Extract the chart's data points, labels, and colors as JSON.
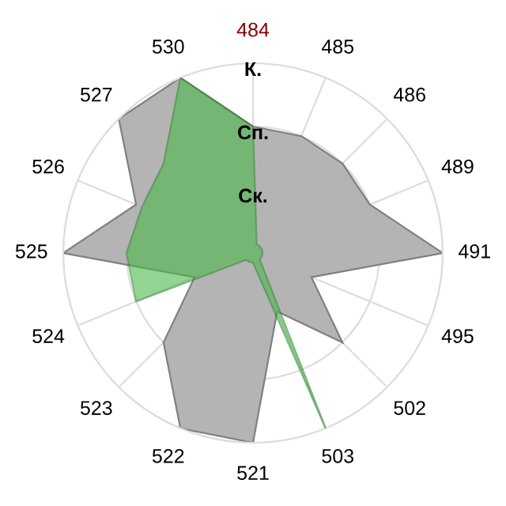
{
  "chart_data": {
    "type": "radar",
    "categories": [
      "484",
      "485",
      "486",
      "489",
      "491",
      "495",
      "502",
      "503",
      "521",
      "522",
      "523",
      "524",
      "525",
      "526",
      "527",
      "530"
    ],
    "colors": [
      "#8b0000",
      "#000000",
      "#000000",
      "#000000",
      "#000000",
      "#000000",
      "#000000",
      "#000000",
      "#000000",
      "#000000",
      "#000000",
      "#000000",
      "#000000",
      "#000000",
      "#000000",
      "#000000"
    ],
    "series": [
      {
        "color": "#b4b4b4",
        "values": [
          2,
          2,
          2,
          2,
          3,
          1,
          2,
          1,
          3,
          3,
          2,
          1,
          3,
          2,
          3,
          3
        ]
      },
      {
        "color": "#4cb84c",
        "values": [
          2,
          0.15,
          0.15,
          0.15,
          0.15,
          0.15,
          0.15,
          3,
          0.15,
          0.15,
          0.15,
          2,
          2,
          1.9,
          2,
          3
        ]
      }
    ],
    "ylim": [
      0,
      3
    ],
    "yticks": [
      {
        "value": 1,
        "label": "Ск."
      },
      {
        "value": 2,
        "label": "Сп."
      },
      {
        "value": 3,
        "label": "К."
      }
    ],
    "grid": true,
    "legend": false,
    "marker": "none"
  }
}
